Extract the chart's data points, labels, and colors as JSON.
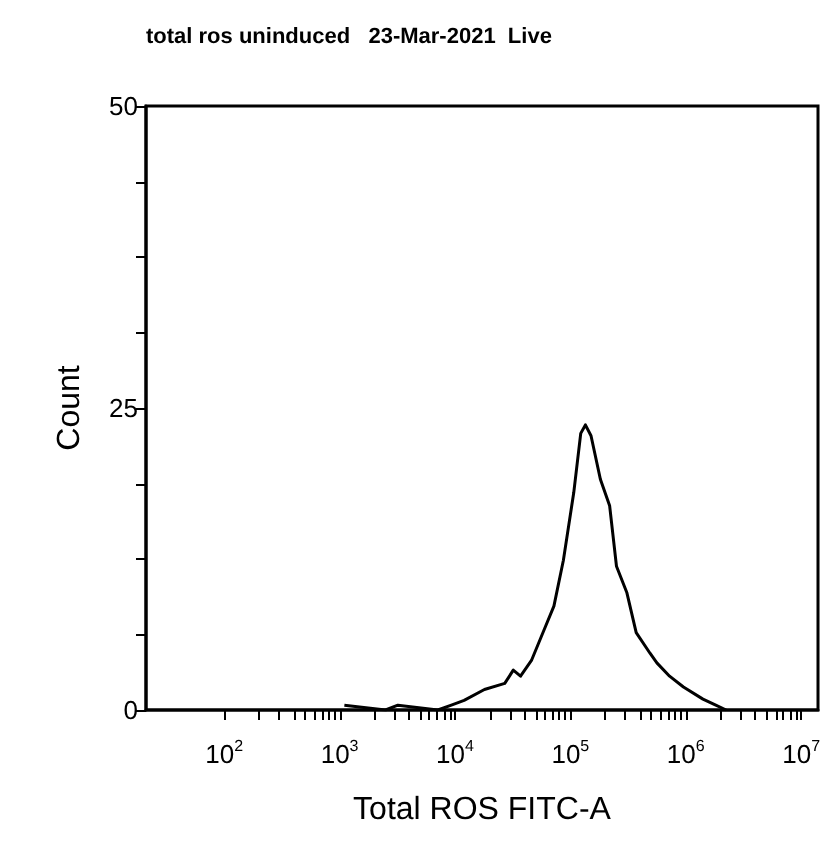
{
  "chart_data": {
    "type": "line",
    "title": "total ros uninduced   23-Mar-2021  Live",
    "xlabel": "Total ROS FITC-A",
    "ylabel": "Count",
    "log": "x",
    "color": "#000000",
    "marker": "none",
    "line_style": "solid",
    "grid": false,
    "x": [
      1100,
      2500,
      3200,
      7100,
      9300,
      12000,
      18000,
      27000,
      32000,
      37000,
      46000,
      59000,
      72000,
      87000,
      107000,
      123000,
      135000,
      151000,
      182000,
      219000,
      251000,
      309000,
      372000,
      490000,
      562000,
      724000,
      955000,
      1410000,
      1820000,
      2240000
    ],
    "values": [
      0.4,
      0,
      0.4,
      0,
      0.4,
      0.8,
      1.7,
      2.2,
      3.3,
      2.8,
      4.1,
      6.6,
      8.6,
      12.4,
      18,
      22.9,
      23.6,
      22.7,
      19.1,
      16.9,
      11.9,
      9.7,
      6.4,
      4.7,
      3.9,
      2.8,
      1.9,
      0.9,
      0.4,
      0
    ],
    "xlim": [
      21,
      14000000
    ],
    "xticks": [
      {
        "value": 100,
        "label": "10$^{2}$"
      },
      {
        "value": 200,
        "label": null
      },
      {
        "value": 300,
        "label": null
      },
      {
        "value": 400,
        "label": null
      },
      {
        "value": 500,
        "label": null
      },
      {
        "value": 600,
        "label": null
      },
      {
        "value": 700,
        "label": null
      },
      {
        "value": 800,
        "label": null
      },
      {
        "value": 900,
        "label": null
      },
      {
        "value": 1000,
        "label": "10$^{3}$"
      },
      {
        "value": 2000,
        "label": null
      },
      {
        "value": 3000,
        "label": null
      },
      {
        "value": 4000,
        "label": null
      },
      {
        "value": 5000,
        "label": null
      },
      {
        "value": 6000,
        "label": null
      },
      {
        "value": 7000,
        "label": null
      },
      {
        "value": 8000,
        "label": null
      },
      {
        "value": 9000,
        "label": null
      },
      {
        "value": 10000,
        "label": "10$^{4}$"
      },
      {
        "value": 20000,
        "label": null
      },
      {
        "value": 30000,
        "label": null
      },
      {
        "value": 40000,
        "label": null
      },
      {
        "value": 50000,
        "label": null
      },
      {
        "value": 60000,
        "label": null
      },
      {
        "value": 70000,
        "label": null
      },
      {
        "value": 80000,
        "label": null
      },
      {
        "value": 90000,
        "label": null
      },
      {
        "value": 100000,
        "label": "10$^{5}$"
      },
      {
        "value": 200000,
        "label": null
      },
      {
        "value": 300000,
        "label": null
      },
      {
        "value": 400000,
        "label": null
      },
      {
        "value": 500000,
        "label": null
      },
      {
        "value": 600000,
        "label": null
      },
      {
        "value": 700000,
        "label": null
      },
      {
        "value": 800000,
        "label": null
      },
      {
        "value": 900000,
        "label": null
      },
      {
        "value": 1000000,
        "label": "10$^{6}$"
      },
      {
        "value": 2000000,
        "label": null
      },
      {
        "value": 3000000,
        "label": null
      },
      {
        "value": 4000000,
        "label": null
      },
      {
        "value": 5000000,
        "label": null
      },
      {
        "value": 6000000,
        "label": null
      },
      {
        "value": 7000000,
        "label": null
      },
      {
        "value": 8000000,
        "label": null
      },
      {
        "value": 9000000,
        "label": null
      },
      {
        "value": 10000000,
        "label": "10$^{7}$"
      }
    ],
    "ylim": [
      0,
      50
    ],
    "yticks": [
      0,
      {
        "value": 6.25,
        "label": null
      },
      {
        "value": 12.5,
        "label": null
      },
      {
        "value": 18.75,
        "label": null
      },
      25,
      {
        "value": 31.25,
        "label": null
      },
      {
        "value": 37.5,
        "label": null
      },
      {
        "value": 43.75,
        "label": null
      },
      50
    ]
  }
}
